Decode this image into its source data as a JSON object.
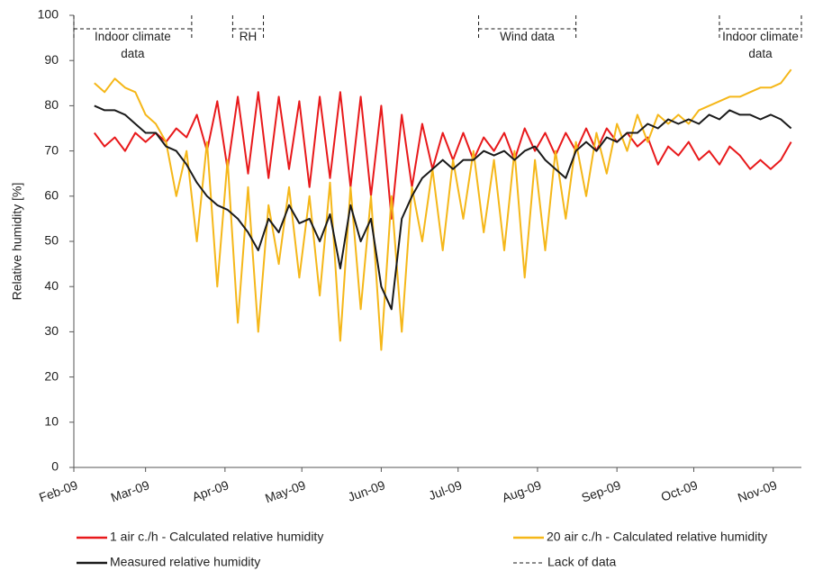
{
  "chart_data": {
    "type": "line",
    "y_label": "Relative humidity [%]",
    "ylim": [
      0,
      100
    ],
    "yticks": [
      0,
      10,
      20,
      30,
      40,
      50,
      60,
      70,
      80,
      90,
      100
    ],
    "xlim": [
      0,
      284
    ],
    "xticks": [
      {
        "value": 0,
        "label": "Feb-09"
      },
      {
        "value": 28,
        "label": "Mar-09"
      },
      {
        "value": 59,
        "label": "Apr-09"
      },
      {
        "value": 89,
        "label": "May-09"
      },
      {
        "value": 120,
        "label": "Jun-09"
      },
      {
        "value": 150,
        "label": "Jul-09"
      },
      {
        "value": 181,
        "label": "Aug-09"
      },
      {
        "value": 212,
        "label": "Sep-09"
      },
      {
        "value": 242,
        "label": "Oct-09"
      },
      {
        "value": 273,
        "label": "Nov-09"
      }
    ],
    "grid": false,
    "x": [
      8,
      12,
      16,
      20,
      24,
      28,
      32,
      36,
      40,
      44,
      48,
      52,
      56,
      60,
      64,
      68,
      72,
      76,
      80,
      84,
      88,
      92,
      96,
      100,
      104,
      108,
      112,
      116,
      120,
      124,
      128,
      132,
      136,
      140,
      144,
      148,
      152,
      156,
      160,
      164,
      168,
      172,
      176,
      180,
      184,
      188,
      192,
      196,
      200,
      204,
      208,
      212,
      216,
      220,
      224,
      228,
      232,
      236,
      240,
      244,
      248,
      252,
      256,
      260,
      264,
      268,
      272,
      276,
      280
    ],
    "series": [
      {
        "name": "1 air c./h - Calculated relative humidity",
        "color": "#e8191b",
        "values": [
          74,
          71,
          73,
          70,
          74,
          72,
          74,
          72,
          75,
          73,
          78,
          70,
          81,
          66,
          82,
          65,
          83,
          64,
          82,
          66,
          81,
          62,
          82,
          64,
          83,
          62,
          82,
          60,
          80,
          55,
          78,
          62,
          76,
          66,
          74,
          68,
          74,
          68,
          73,
          70,
          74,
          68,
          75,
          70,
          74,
          69,
          74,
          70,
          75,
          70,
          75,
          72,
          74,
          71,
          73,
          67,
          71,
          69,
          72,
          68,
          70,
          67,
          71,
          69,
          66,
          68,
          66,
          68,
          72
        ]
      },
      {
        "name": "20 air c./h - Calculated relative humidity",
        "color": "#f5b719",
        "values": [
          85,
          83,
          86,
          84,
          83,
          78,
          76,
          72,
          60,
          70,
          50,
          72,
          40,
          68,
          32,
          62,
          30,
          58,
          45,
          62,
          42,
          60,
          38,
          63,
          28,
          62,
          35,
          60,
          26,
          60,
          30,
          62,
          50,
          66,
          48,
          68,
          55,
          70,
          52,
          68,
          48,
          70,
          42,
          68,
          48,
          70,
          55,
          72,
          60,
          74,
          65,
          76,
          70,
          78,
          72,
          78,
          76,
          78,
          76,
          79,
          80,
          81,
          82,
          82,
          83,
          84,
          84,
          85,
          88
        ]
      },
      {
        "name": "Measured relative humidity",
        "color": "#1a1a1a",
        "values": [
          80,
          79,
          79,
          78,
          76,
          74,
          74,
          71,
          70,
          67,
          63,
          60,
          58,
          57,
          55,
          52,
          48,
          55,
          52,
          58,
          54,
          55,
          50,
          56,
          44,
          58,
          50,
          55,
          40,
          35,
          55,
          60,
          64,
          66,
          68,
          66,
          68,
          68,
          70,
          69,
          70,
          68,
          70,
          71,
          68,
          66,
          64,
          70,
          72,
          70,
          73,
          72,
          74,
          74,
          76,
          75,
          77,
          76,
          77,
          76,
          78,
          77,
          79,
          78,
          78,
          77,
          78,
          77,
          75
        ]
      }
    ],
    "missing_data": {
      "name": "Lack of data",
      "color": "#1a1a1a",
      "y": 97,
      "periods": [
        {
          "label": "Indoor climate data",
          "start": 0,
          "end": 46
        },
        {
          "label": "RH",
          "start": 62,
          "end": 74
        },
        {
          "label": "Wind data",
          "start": 158,
          "end": 196
        },
        {
          "label": "Indoor climate data",
          "start": 252,
          "end": 284
        }
      ]
    }
  }
}
